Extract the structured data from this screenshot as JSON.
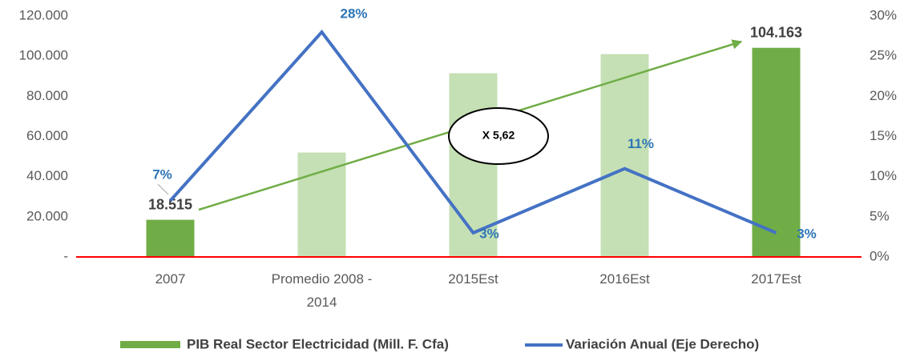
{
  "chart_data": {
    "type": "bar-line",
    "categories": [
      "2007",
      "Promedio 2008 - 2014",
      "2015Est",
      "2016Est",
      "2017Est"
    ],
    "series": [
      {
        "name": "PIB Real Sector Electricidad (Mill. F. Cfa)",
        "color": "#70ad47",
        "colors": [
          "#70ad47",
          "#c5e0b4",
          "#c5e0b4",
          "#c5e0b4",
          "#70ad47"
        ],
        "values": [
          18515,
          52000,
          91500,
          101000,
          104163
        ],
        "value_labels": [
          "18.515",
          null,
          null,
          null,
          "104.163"
        ]
      },
      {
        "name": "Variación Anual (Eje Derecho)",
        "color": "#4472c4",
        "axis": "y2",
        "values": [
          7,
          28,
          3,
          11,
          3
        ],
        "value_labels": [
          "7%",
          "28%",
          "3%",
          "11%",
          "3%"
        ]
      }
    ],
    "ylim": [
      0,
      120000
    ],
    "yticks": [
      {
        "value": 0,
        "label": "-"
      },
      {
        "value": 20000,
        "label": "20.000"
      },
      {
        "value": 40000,
        "label": "40.000"
      },
      {
        "value": 60000,
        "label": "60.000"
      },
      {
        "value": 80000,
        "label": "80.000"
      },
      {
        "value": 100000,
        "label": "100.000"
      },
      {
        "value": 120000,
        "label": "120.000"
      }
    ],
    "y2lim": [
      0,
      30
    ],
    "y2ticks": [
      {
        "value": 0,
        "label": "0%"
      },
      {
        "value": 5,
        "label": "5%"
      },
      {
        "value": 10,
        "label": "10%"
      },
      {
        "value": 15,
        "label": "15%"
      },
      {
        "value": 20,
        "label": "20%"
      },
      {
        "value": 25,
        "label": "25%"
      },
      {
        "value": 30,
        "label": "30%"
      }
    ],
    "annotations": [
      "X 5,62"
    ],
    "legend": "bottom"
  }
}
